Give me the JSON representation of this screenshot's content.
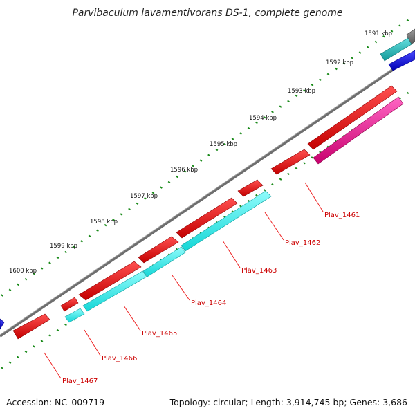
{
  "title": "Parvibaculum lavamentivorans DS-1, complete genome",
  "footer": {
    "accession": "Accession: NC_009719",
    "summary": "Topology: circular; Length: 3,914,745 bp; Genes: 3,686"
  },
  "ticks": [
    {
      "label": "1591 kbp"
    },
    {
      "label": "1592 kbp"
    },
    {
      "label": "1593 kbp"
    },
    {
      "label": "1594 kbp"
    },
    {
      "label": "1595 kbp"
    },
    {
      "label": "1596 kbp"
    },
    {
      "label": "1597 kbp"
    },
    {
      "label": "1598 kbp"
    },
    {
      "label": "1599 kbp"
    },
    {
      "label": "1600 kbp"
    }
  ],
  "gene_labels": [
    {
      "label": "Plav_1461"
    },
    {
      "label": "Plav_1462"
    },
    {
      "label": "Plav_1463"
    },
    {
      "label": "Plav_1464"
    },
    {
      "label": "Plav_1465"
    },
    {
      "label": "Plav_1466"
    },
    {
      "label": "Plav_1467"
    }
  ],
  "colors": {
    "backbone": "#7a7a7a",
    "gene_red": "#ee0000",
    "gene_cyan": "#22eeee",
    "gene_teal": "#20c0c0",
    "gene_magenta": "#ee1199",
    "gene_blue": "#0000ee",
    "gc_skew_dots": "#1a8a1a",
    "label_red": "#cc0000"
  }
}
